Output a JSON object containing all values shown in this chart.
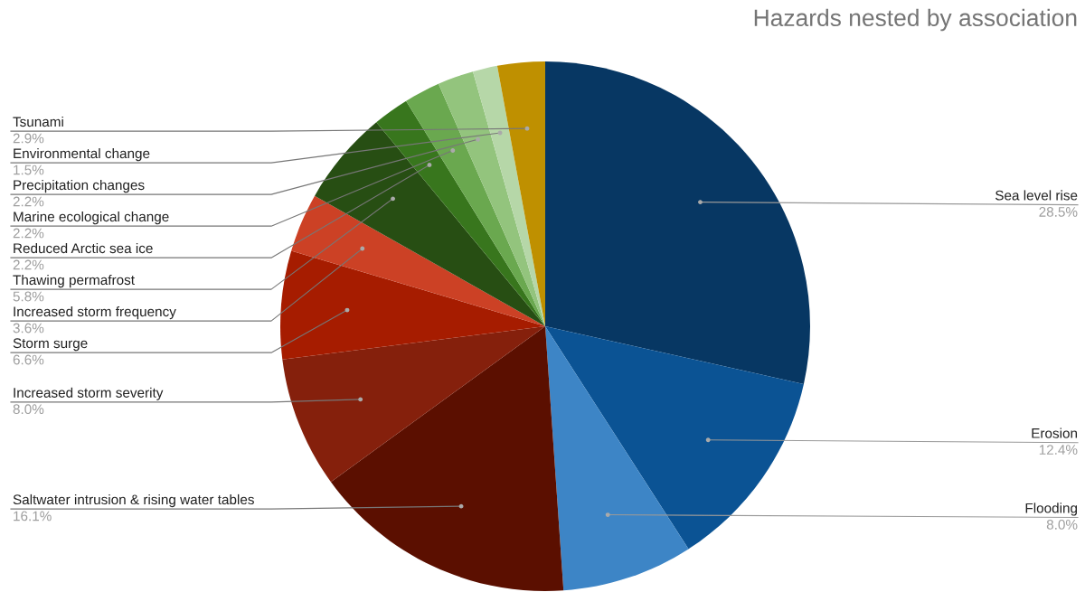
{
  "chart_data": {
    "type": "pie",
    "title": "Hazards nested by association",
    "categories": [
      "Sea level rise",
      "Erosion",
      "Flooding",
      "Saltwater intrusion & rising water tables",
      "Increased storm severity",
      "Storm surge",
      "Increased storm frequency",
      "Thawing permafrost",
      "Reduced Arctic sea ice",
      "Marine ecological change",
      "Precipitation changes",
      "Environmental change",
      "Tsunami"
    ],
    "values": [
      28.5,
      12.4,
      8.0,
      16.1,
      8.0,
      6.6,
      3.6,
      5.8,
      2.2,
      2.2,
      2.2,
      1.5,
      2.9
    ],
    "value_labels": [
      "28.5%",
      "12.4%",
      "8.0%",
      "16.1%",
      "8.0%",
      "6.6%",
      "3.6%",
      "5.8%",
      "2.2%",
      "2.2%",
      "2.2%",
      "1.5%",
      "2.9%"
    ],
    "colors": [
      "#073763",
      "#0b5394",
      "#3d85c6",
      "#5b0f00",
      "#85200c",
      "#a61c00",
      "#cc4125",
      "#274e13",
      "#38761d",
      "#6aa84f",
      "#93c47d",
      "#b6d7a8",
      "#bf9000"
    ]
  }
}
